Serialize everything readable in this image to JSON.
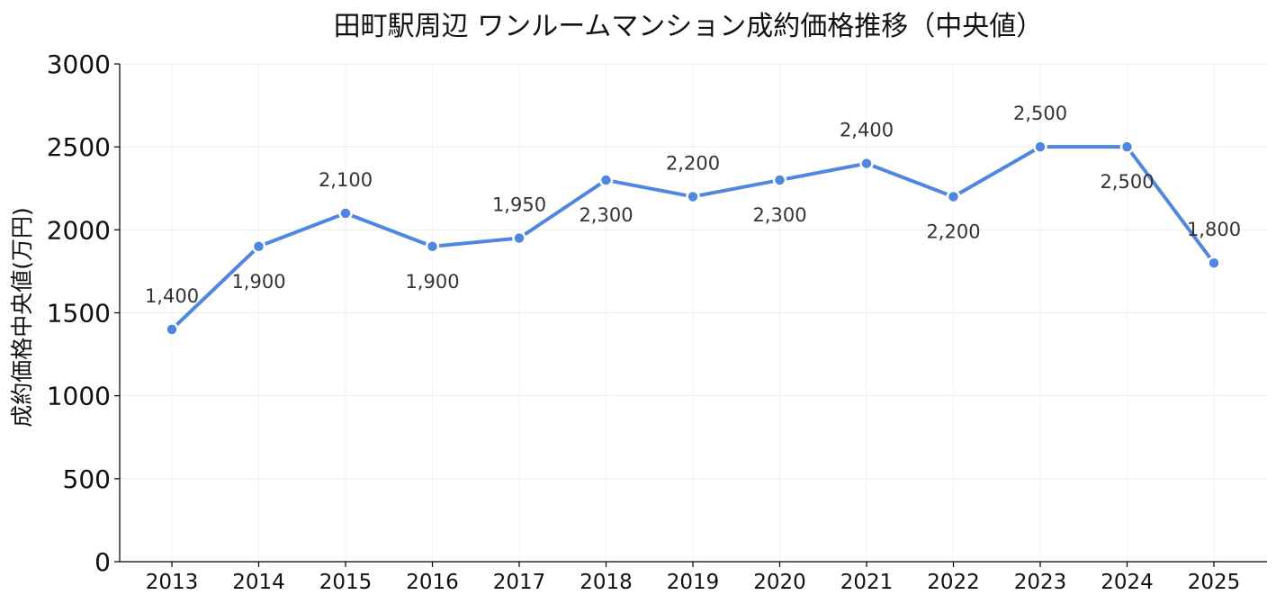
{
  "chart_data": {
    "type": "line",
    "title": "田町駅周辺 ワンルームマンション成約価格推移（中央値）",
    "xlabel": "",
    "ylabel": "成約価格中央値(万円)",
    "categories": [
      "2013",
      "2014",
      "2015",
      "2016",
      "2017",
      "2018",
      "2019",
      "2020",
      "2021",
      "2022",
      "2023",
      "2024",
      "2025"
    ],
    "series": [
      {
        "values": [
          1400,
          1900,
          2100,
          1900,
          1950,
          2300,
          2200,
          2300,
          2400,
          2200,
          2500,
          2500,
          1800
        ],
        "color": "#4f86e1"
      }
    ],
    "data_labels": [
      "1,400",
      "1,900",
      "2,100",
      "1,900",
      "1,950",
      "2,300",
      "2,200",
      "2,300",
      "2,400",
      "2,200",
      "2,500",
      "2,500",
      "1,800"
    ],
    "label_positions": [
      "above",
      "below",
      "above",
      "below",
      "above",
      "below",
      "above",
      "below",
      "above",
      "below",
      "above",
      "below",
      "above"
    ],
    "ylim": [
      0,
      3000
    ],
    "yticks": [
      0,
      500,
      1000,
      1500,
      2000,
      2500,
      3000
    ],
    "grid": true,
    "legend": "none"
  }
}
